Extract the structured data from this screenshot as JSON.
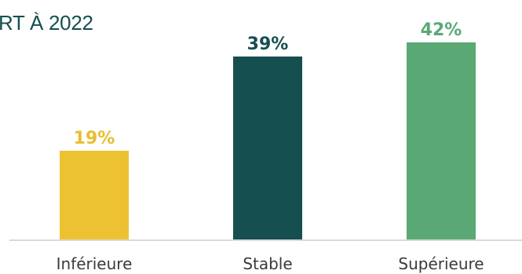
{
  "title": "RT À 2022",
  "chart_data": {
    "type": "bar",
    "title": "RT À 2022",
    "categories": [
      "Inférieure",
      "Stable",
      "Supérieure"
    ],
    "values": [
      19,
      39,
      42
    ],
    "value_labels": [
      "19%",
      "39%",
      "42%"
    ],
    "colors": [
      "#ecc233",
      "#164f50",
      "#5aa974"
    ],
    "ylim": [
      0,
      42
    ],
    "grid": false,
    "legend": "none",
    "xlabel": "",
    "ylabel": ""
  }
}
